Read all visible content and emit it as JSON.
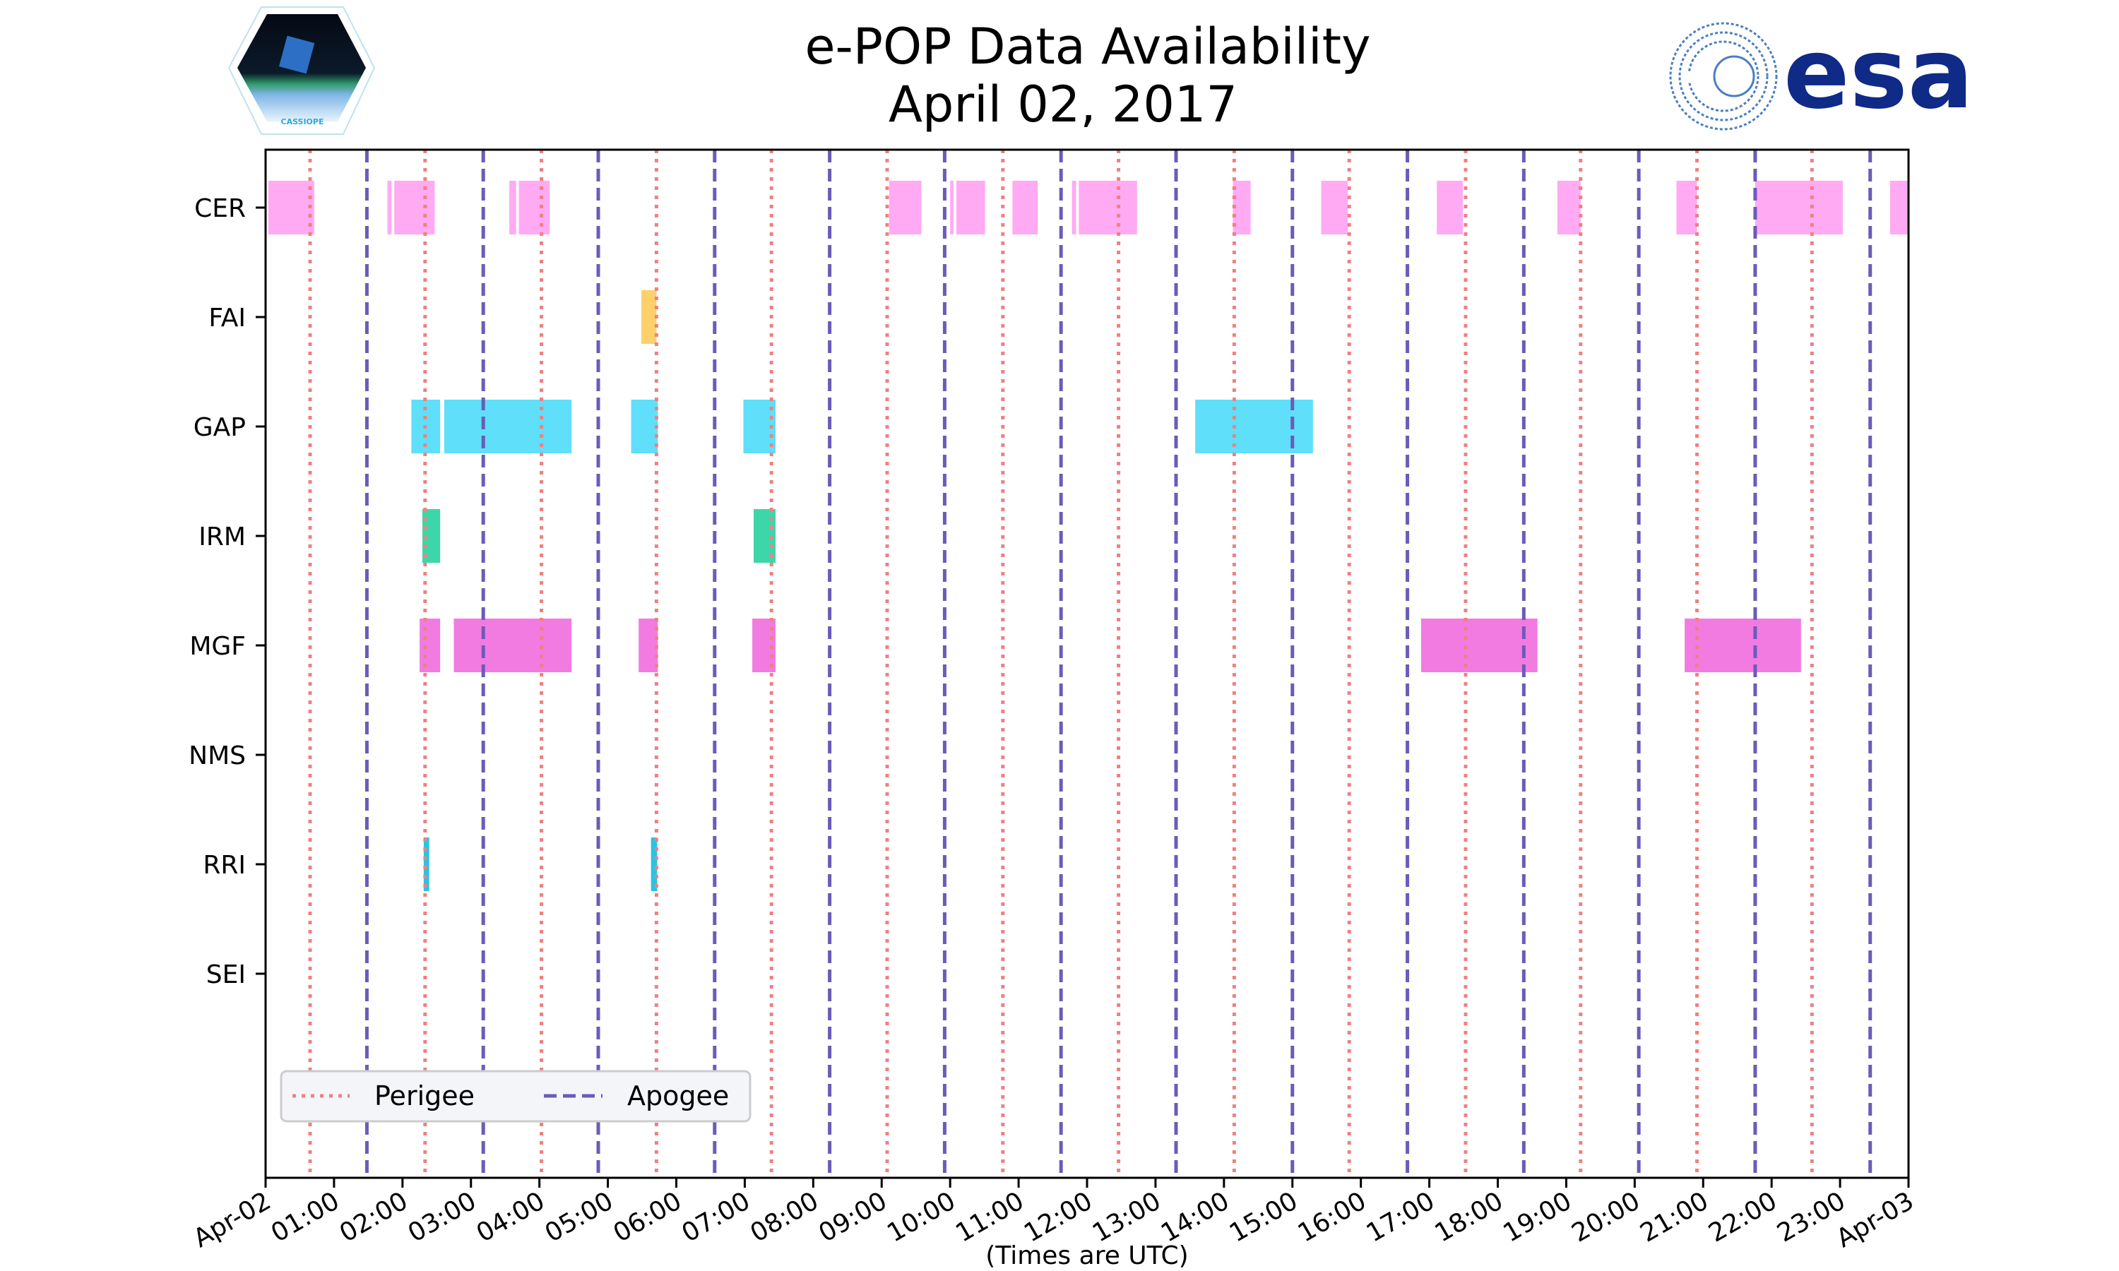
{
  "chart_data": {
    "type": "timeline",
    "title": "e-POP Data Availability",
    "subtitle": "April 02, 2017",
    "xlabel": "(Times are UTC)",
    "ylabel": "",
    "xlim_hours": [
      0,
      24
    ],
    "x_tick_labels": [
      "Apr-02",
      "01:00",
      "02:00",
      "03:00",
      "04:00",
      "05:00",
      "06:00",
      "07:00",
      "08:00",
      "09:00",
      "10:00",
      "11:00",
      "12:00",
      "13:00",
      "14:00",
      "15:00",
      "16:00",
      "17:00",
      "18:00",
      "19:00",
      "20:00",
      "21:00",
      "22:00",
      "23:00",
      "Apr-03"
    ],
    "instruments": [
      {
        "name": "CER",
        "color": "#ffaaf3",
        "intervals": [
          [
            0.04,
            0.71
          ],
          [
            1.78,
            1.84
          ],
          [
            1.88,
            2.47
          ],
          [
            3.56,
            3.66
          ],
          [
            3.7,
            4.15
          ],
          [
            9.11,
            9.58
          ],
          [
            10.0,
            10.05
          ],
          [
            10.09,
            10.51
          ],
          [
            10.91,
            11.28
          ],
          [
            11.78,
            11.84
          ],
          [
            11.88,
            12.73
          ],
          [
            14.13,
            14.39
          ],
          [
            15.42,
            15.81
          ],
          [
            17.11,
            17.49
          ],
          [
            18.87,
            19.21
          ],
          [
            20.61,
            20.91
          ],
          [
            21.76,
            23.04
          ],
          [
            23.73,
            24.0
          ]
        ]
      },
      {
        "name": "FAI",
        "color": "#fdd06b",
        "intervals": [
          [
            5.49,
            5.71
          ]
        ]
      },
      {
        "name": "GAP",
        "color": "#5fdffa",
        "intervals": [
          [
            2.13,
            2.55
          ],
          [
            2.61,
            4.47
          ],
          [
            5.34,
            5.73
          ],
          [
            6.98,
            7.45
          ],
          [
            13.58,
            15.3
          ]
        ]
      },
      {
        "name": "IRM",
        "color": "#3dd6a9",
        "intervals": [
          [
            2.29,
            2.55
          ],
          [
            7.13,
            7.45
          ]
        ]
      },
      {
        "name": "MGF",
        "color": "#f27be2",
        "intervals": [
          [
            2.25,
            2.55
          ],
          [
            2.75,
            4.47
          ],
          [
            5.45,
            5.73
          ],
          [
            7.11,
            7.45
          ],
          [
            16.88,
            18.58
          ],
          [
            20.73,
            22.43
          ]
        ]
      },
      {
        "name": "NMS",
        "color": "#999999",
        "intervals": []
      },
      {
        "name": "RRI",
        "color": "#29c4e4",
        "intervals": [
          [
            2.31,
            2.39
          ],
          [
            5.63,
            5.72
          ]
        ]
      },
      {
        "name": "SEI",
        "color": "#999999",
        "intervals": []
      }
    ],
    "perigee_hours": [
      0.65,
      2.33,
      4.03,
      5.71,
      7.39,
      9.08,
      10.77,
      12.46,
      14.15,
      15.83,
      17.53,
      19.21,
      20.91,
      22.59
    ],
    "apogee_hours": [
      1.48,
      3.18,
      4.86,
      6.56,
      8.24,
      9.92,
      11.62,
      13.3,
      15.0,
      16.68,
      18.38,
      20.06,
      21.76,
      23.44
    ],
    "legend": {
      "placement": "bottom-left",
      "entries": [
        {
          "label": "Perigee",
          "style": "dotted",
          "color": "#f08080"
        },
        {
          "label": "Apogee",
          "style": "dashed",
          "color": "#6a5cb8"
        }
      ]
    },
    "grid": false
  },
  "logos": {
    "left_logo_text": "CASSIOPE",
    "right_logo_text": "esa"
  }
}
